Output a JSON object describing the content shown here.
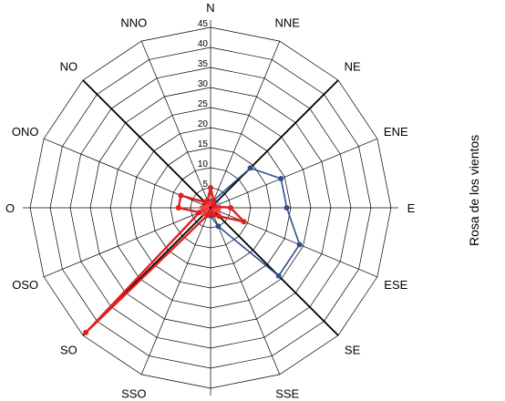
{
  "chart_data": {
    "type": "radar",
    "title": "Rosa de los vientos",
    "directions": [
      "N",
      "NNE",
      "NE",
      "ENE",
      "E",
      "ESE",
      "SE",
      "SSE",
      "S",
      "SSO",
      "SO",
      "OSO",
      "O",
      "ONO",
      "NO",
      "NNO"
    ],
    "radial_ticks": [
      0,
      5,
      10,
      15,
      20,
      25,
      30,
      35,
      40,
      45
    ],
    "rlim": [
      0,
      45
    ],
    "grid": true,
    "series": [
      {
        "color": "#7fa4d8",
        "values": [
          1,
          1,
          1,
          2,
          1,
          1,
          1,
          1,
          1,
          1,
          1,
          1,
          1,
          1,
          1,
          1
        ]
      },
      {
        "color": "#2e4e8f",
        "values": [
          1,
          2,
          14,
          19,
          19,
          24,
          24,
          5,
          2,
          1,
          1,
          1,
          2,
          1,
          1,
          1
        ]
      },
      {
        "color": "#ff4040",
        "values": [
          1,
          1,
          1,
          1,
          2,
          2,
          1,
          1,
          1,
          1,
          2,
          1,
          2,
          1,
          1,
          1
        ]
      },
      {
        "color": "#e02020",
        "values": [
          5,
          2,
          1,
          1,
          5,
          9,
          3,
          2,
          1,
          2,
          44,
          3,
          8,
          8,
          2,
          2
        ]
      }
    ]
  }
}
